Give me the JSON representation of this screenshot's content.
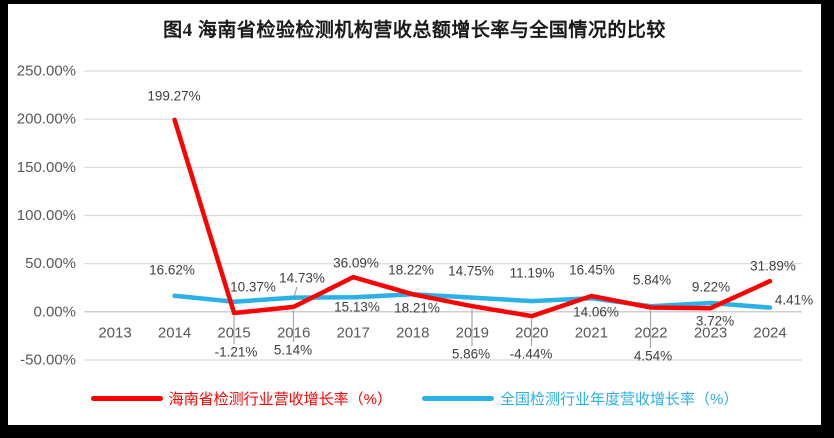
{
  "chart_data": {
    "type": "line",
    "title": "图4  海南省检验检测机构营收总额增长率与全国情况的比较",
    "categories": [
      "2013",
      "2014",
      "2015",
      "2016",
      "2017",
      "2018",
      "2019",
      "2020",
      "2021",
      "2022",
      "2023",
      "2024"
    ],
    "series": [
      {
        "name": "海南省检测行业营收增长率（%）",
        "color": "#FE0000",
        "values": [
          null,
          199.27,
          -1.21,
          5.14,
          36.09,
          18.22,
          5.86,
          -4.44,
          16.45,
          4.54,
          3.72,
          31.89
        ],
        "labels": [
          "",
          "199.27%",
          "-1.21%",
          "5.14%",
          "36.09%",
          "18.22%",
          "5.86%",
          "-4.44%",
          "16.45%",
          "4.54%",
          "3.72%",
          "31.89%"
        ]
      },
      {
        "name": "全国检测行业年度营收增长率（%）",
        "color": "#2BB0E8",
        "values": [
          null,
          16.62,
          10.37,
          14.73,
          15.13,
          18.21,
          14.75,
          11.19,
          14.06,
          5.84,
          9.22,
          4.41
        ],
        "labels": [
          "",
          "16.62%",
          "10.37%",
          "14.73%",
          "15.13%",
          "18.21%",
          "14.75%",
          "11.19%",
          "14.06%",
          "5.84%",
          "9.22%",
          "4.41%"
        ]
      }
    ],
    "ylim": [
      -50,
      250
    ],
    "ytick_step": 50,
    "ytick_labels": [
      "250.00%",
      "200.00%",
      "150.00%",
      "100.00%",
      "50.00%",
      "0.00%",
      "-50.00%"
    ],
    "grid": true,
    "legend_position": "bottom",
    "colors": {
      "background": "#FFFFFF",
      "frame": "#000000",
      "gridline": "#D9D9D9",
      "zero_axis": "#BFBFBF",
      "tick_label": "#595959",
      "data_label": "#3F3F3F",
      "leader_line": "#A6A6A6"
    }
  }
}
